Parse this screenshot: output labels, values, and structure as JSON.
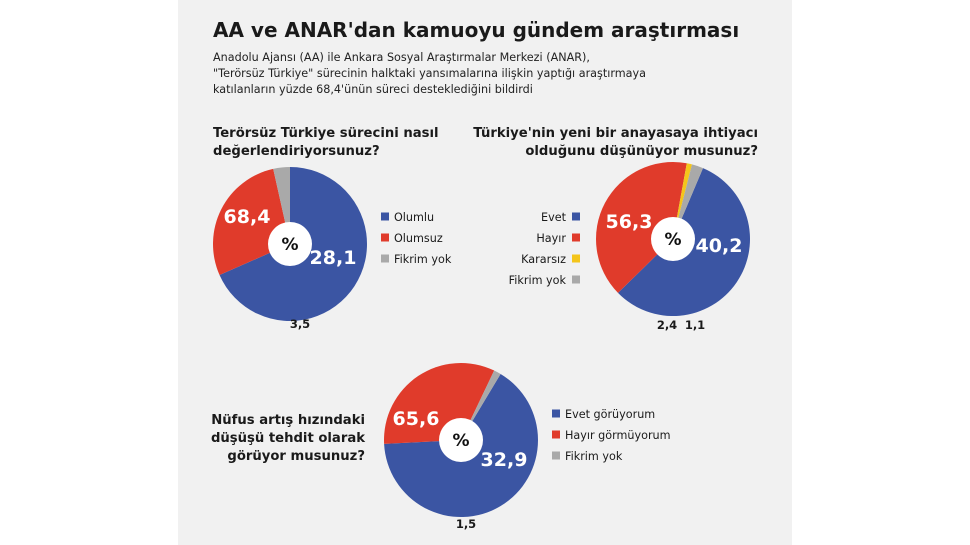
{
  "title": "AA ve ANAR'dan kamuoyu gündem araştırması",
  "subtitle_lines": [
    "Anadolu Ajansı (AA) ile Ankara Sosyal Araştırmalar Merkezi (ANAR),",
    "\"Terörsüz Türkiye\" sürecinin halktaki yansımalarına ilişkin yaptığı araştırmaya",
    "katılanların yüzde 68,4'ünün süreci desteklediğini bildirdi"
  ],
  "colors": {
    "blue": "#3b55a3",
    "red": "#e03b2b",
    "yellow": "#f4c51b",
    "gray": "#a9a9a9"
  },
  "center_label": "%",
  "chart_data": [
    {
      "type": "pie",
      "question_lines": [
        "Terörsüz Türkiye sürecini nasıl",
        "değerlendiriyorsunuz?"
      ],
      "categories": [
        "Olumlu",
        "Olumsuz",
        "Fikrim yok"
      ],
      "values": [
        68.4,
        28.1,
        3.5
      ],
      "value_labels": [
        "68,4",
        "28,1",
        "3,5"
      ],
      "legend": "right"
    },
    {
      "type": "pie",
      "question_lines": [
        "Türkiye'nin yeni bir anayasaya ihtiyacı",
        "olduğunu düşünüyor musunuz?"
      ],
      "categories": [
        "Evet",
        "Hayır",
        "Kararsız",
        "Fikrim yok"
      ],
      "values": [
        56.3,
        40.2,
        1.1,
        2.4
      ],
      "value_labels": [
        "56,3",
        "40,2",
        "1,1",
        "2,4"
      ],
      "legend": "left"
    },
    {
      "type": "pie",
      "question_lines": [
        "Nüfus artış hızındaki",
        "düşüşü tehdit olarak",
        "görüyor musunuz?"
      ],
      "categories": [
        "Evet görüyorum",
        "Hayır görmüyorum",
        "Fikrim yok"
      ],
      "values": [
        65.6,
        32.9,
        1.5
      ],
      "value_labels": [
        "65,6",
        "32,9",
        "1,5"
      ],
      "legend": "right"
    }
  ]
}
